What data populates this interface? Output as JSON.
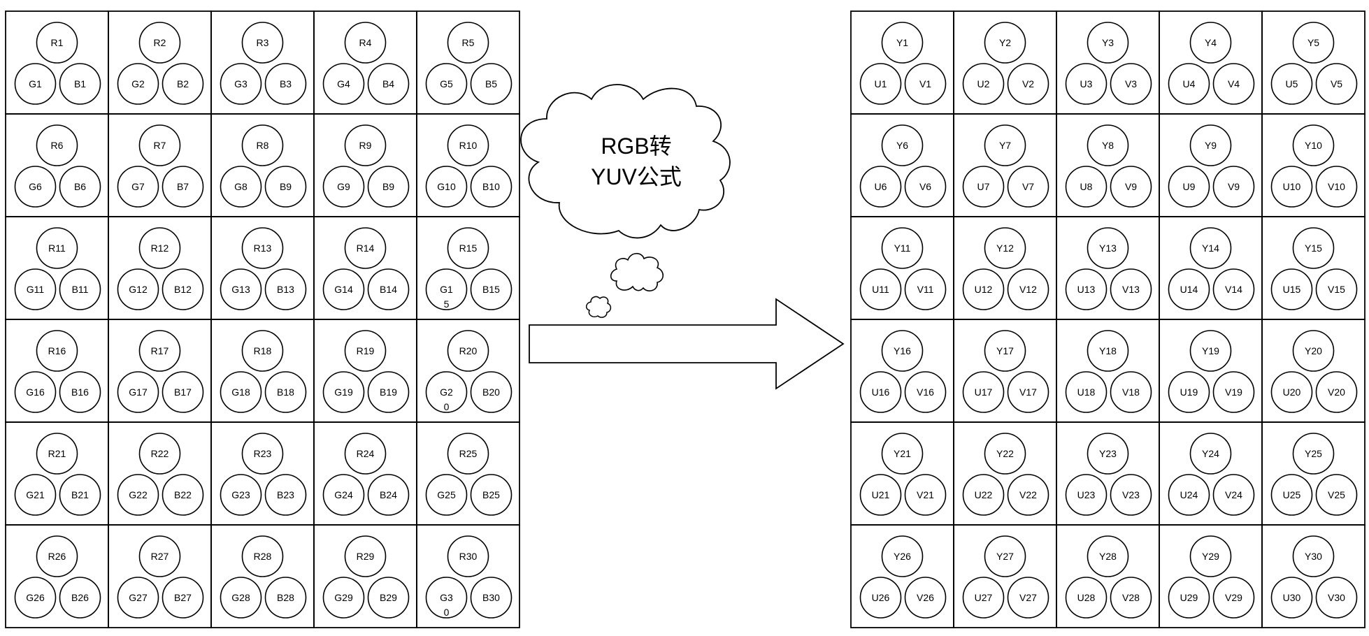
{
  "rgb_grid": {
    "cells": [
      {
        "top": "R1",
        "left": "G1",
        "right": "B1"
      },
      {
        "top": "R2",
        "left": "G2",
        "right": "B2"
      },
      {
        "top": "R3",
        "left": "G3",
        "right": "B3"
      },
      {
        "top": "R4",
        "left": "G4",
        "right": "B4"
      },
      {
        "top": "R5",
        "left": "G5",
        "right": "B5"
      },
      {
        "top": "R6",
        "left": "G6",
        "right": "B6"
      },
      {
        "top": "R7",
        "left": "G7",
        "right": "B7"
      },
      {
        "top": "R8",
        "left": "G8",
        "right": "B9"
      },
      {
        "top": "R9",
        "left": "G9",
        "right": "B9"
      },
      {
        "top": "R10",
        "left": "G10",
        "right": "B10"
      },
      {
        "top": "R11",
        "left": "G11",
        "right": "B11"
      },
      {
        "top": "R12",
        "left": "G12",
        "right": "B12"
      },
      {
        "top": "R13",
        "left": "G13",
        "right": "B13"
      },
      {
        "top": "R14",
        "left": "G14",
        "right": "B14"
      },
      {
        "top": "R15",
        "left": "G15",
        "right": "B15",
        "left_wrap": true
      },
      {
        "top": "R16",
        "left": "G16",
        "right": "B16"
      },
      {
        "top": "R17",
        "left": "G17",
        "right": "B17"
      },
      {
        "top": "R18",
        "left": "G18",
        "right": "B18"
      },
      {
        "top": "R19",
        "left": "G19",
        "right": "B19"
      },
      {
        "top": "R20",
        "left": "G20",
        "right": "B20",
        "left_wrap": true
      },
      {
        "top": "R21",
        "left": "G21",
        "right": "B21"
      },
      {
        "top": "R22",
        "left": "G22",
        "right": "B22"
      },
      {
        "top": "R23",
        "left": "G23",
        "right": "B23"
      },
      {
        "top": "R24",
        "left": "G24",
        "right": "B24"
      },
      {
        "top": "R25",
        "left": "G25",
        "right": "B25"
      },
      {
        "top": "R26",
        "left": "G26",
        "right": "B26"
      },
      {
        "top": "R27",
        "left": "G27",
        "right": "B27"
      },
      {
        "top": "R28",
        "left": "G28",
        "right": "B28"
      },
      {
        "top": "R29",
        "left": "G29",
        "right": "B29"
      },
      {
        "top": "R30",
        "left": "G30",
        "right": "B30",
        "left_wrap": true
      }
    ]
  },
  "yuv_grid": {
    "cells": [
      {
        "top": "Y1",
        "left": "U1",
        "right": "V1"
      },
      {
        "top": "Y2",
        "left": "U2",
        "right": "V2"
      },
      {
        "top": "Y3",
        "left": "U3",
        "right": "V3"
      },
      {
        "top": "Y4",
        "left": "U4",
        "right": "V4"
      },
      {
        "top": "Y5",
        "left": "U5",
        "right": "V5"
      },
      {
        "top": "Y6",
        "left": "U6",
        "right": "V6"
      },
      {
        "top": "Y7",
        "left": "U7",
        "right": "V7"
      },
      {
        "top": "Y8",
        "left": "U8",
        "right": "V9"
      },
      {
        "top": "Y9",
        "left": "U9",
        "right": "V9"
      },
      {
        "top": "Y10",
        "left": "U10",
        "right": "V10"
      },
      {
        "top": "Y11",
        "left": "U11",
        "right": "V11"
      },
      {
        "top": "Y12",
        "left": "U12",
        "right": "V12"
      },
      {
        "top": "Y13",
        "left": "U13",
        "right": "V13"
      },
      {
        "top": "Y14",
        "left": "U14",
        "right": "V14"
      },
      {
        "top": "Y15",
        "left": "U15",
        "right": "V15"
      },
      {
        "top": "Y16",
        "left": "U16",
        "right": "V16"
      },
      {
        "top": "Y17",
        "left": "U17",
        "right": "V17"
      },
      {
        "top": "Y18",
        "left": "U18",
        "right": "V18"
      },
      {
        "top": "Y19",
        "left": "U19",
        "right": "V19"
      },
      {
        "top": "Y20",
        "left": "U20",
        "right": "V20"
      },
      {
        "top": "Y21",
        "left": "U21",
        "right": "V21"
      },
      {
        "top": "Y22",
        "left": "U22",
        "right": "V22"
      },
      {
        "top": "Y23",
        "left": "U23",
        "right": "V23"
      },
      {
        "top": "Y24",
        "left": "U24",
        "right": "V24"
      },
      {
        "top": "Y25",
        "left": "U25",
        "right": "V25"
      },
      {
        "top": "Y26",
        "left": "U26",
        "right": "V26"
      },
      {
        "top": "Y27",
        "left": "U27",
        "right": "V27"
      },
      {
        "top": "Y28",
        "left": "U28",
        "right": "V28"
      },
      {
        "top": "Y29",
        "left": "U29",
        "right": "V29"
      },
      {
        "top": "Y30",
        "left": "U30",
        "right": "V30"
      }
    ]
  },
  "cloud": {
    "line1": "RGB转",
    "line2": "YUV公式"
  },
  "colors": {
    "stroke": "#000000",
    "fill": "#ffffff"
  }
}
